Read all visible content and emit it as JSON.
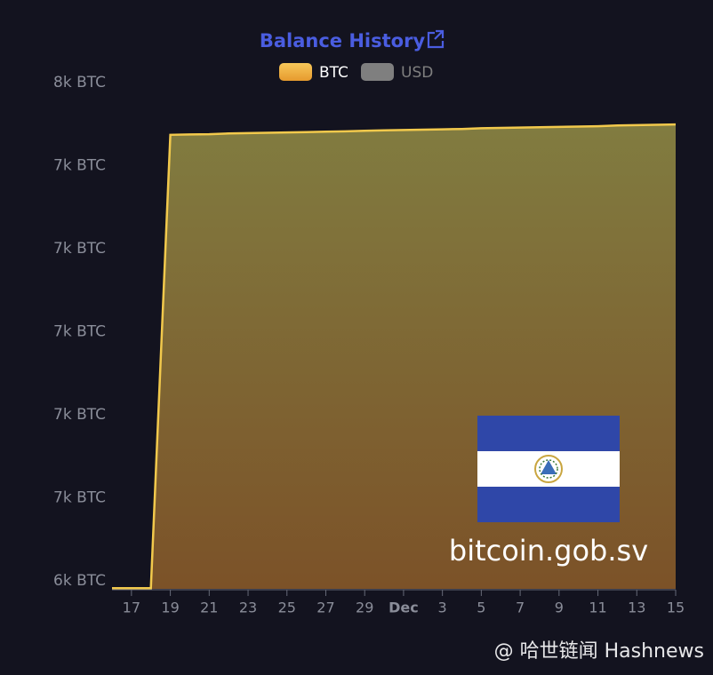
{
  "chart_data": {
    "type": "area",
    "title": "Balance History",
    "categories": [
      null,
      "17",
      null,
      "19",
      null,
      "21",
      null,
      "23",
      null,
      "25",
      null,
      "27",
      null,
      "29",
      null,
      "Dec",
      null,
      "3",
      null,
      "5",
      null,
      "7",
      null,
      "9",
      null,
      "11",
      null,
      "13",
      null,
      "15"
    ],
    "series": [
      {
        "name": "BTC",
        "color": "#f2c94c",
        "values": [
          6259,
          6259,
          6259,
          7569,
          7570,
          7571,
          7573,
          7574,
          7575,
          7576,
          7577,
          7578,
          7579,
          7581,
          7582,
          7583,
          7584,
          7585,
          7586,
          7588,
          7589,
          7590,
          7591,
          7592,
          7593,
          7594,
          7596,
          7597,
          7598,
          7599
        ]
      }
    ],
    "hidden_series": [
      {
        "name": "USD",
        "color": "#7f7f7f"
      }
    ],
    "ylim": [
      6257,
      7720
    ],
    "yticks": [
      {
        "value": 6280,
        "label": "6k BTC"
      },
      {
        "value": 6520,
        "label": "7k BTC"
      },
      {
        "value": 6760,
        "label": "7k BTC"
      },
      {
        "value": 7000,
        "label": "7k BTC"
      },
      {
        "value": 7240,
        "label": "7k BTC"
      },
      {
        "value": 7480,
        "label": "7k BTC"
      },
      {
        "value": 7720,
        "label": "8k BTC"
      }
    ],
    "grid": false,
    "annotations": [
      "bitcoin.gob.sv",
      "@ 哈世链闻 Hashnews"
    ]
  }
}
